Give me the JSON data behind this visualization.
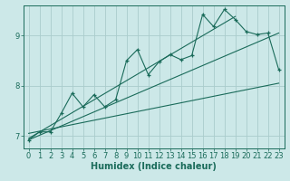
{
  "title": "",
  "xlabel": "Humidex (Indice chaleur)",
  "bg_color": "#cce8e8",
  "grid_color": "#aacccc",
  "line_color": "#1a6b5a",
  "xmin": -0.5,
  "xmax": 23.5,
  "ymin": 6.75,
  "ymax": 9.6,
  "yticks": [
    7,
    8,
    9
  ],
  "xticks": [
    0,
    1,
    2,
    3,
    4,
    5,
    6,
    7,
    8,
    9,
    10,
    11,
    12,
    13,
    14,
    15,
    16,
    17,
    18,
    19,
    20,
    21,
    22,
    23
  ],
  "data_x": [
    0,
    1,
    2,
    3,
    4,
    5,
    6,
    7,
    8,
    9,
    10,
    11,
    12,
    13,
    14,
    15,
    16,
    17,
    18,
    19,
    20,
    21,
    22,
    23
  ],
  "data_y": [
    6.92,
    7.08,
    7.08,
    7.45,
    7.85,
    7.58,
    7.82,
    7.58,
    7.72,
    8.5,
    8.72,
    8.22,
    8.48,
    8.62,
    8.52,
    8.6,
    9.42,
    9.18,
    9.52,
    9.32,
    9.08,
    9.02,
    9.05,
    8.32
  ],
  "trend1_x": [
    0,
    23
  ],
  "trend1_y": [
    6.92,
    9.05
  ],
  "trend2_x": [
    0,
    19
  ],
  "trend2_y": [
    6.95,
    9.38
  ],
  "trend3_x": [
    0,
    23
  ],
  "trend3_y": [
    7.05,
    8.05
  ]
}
